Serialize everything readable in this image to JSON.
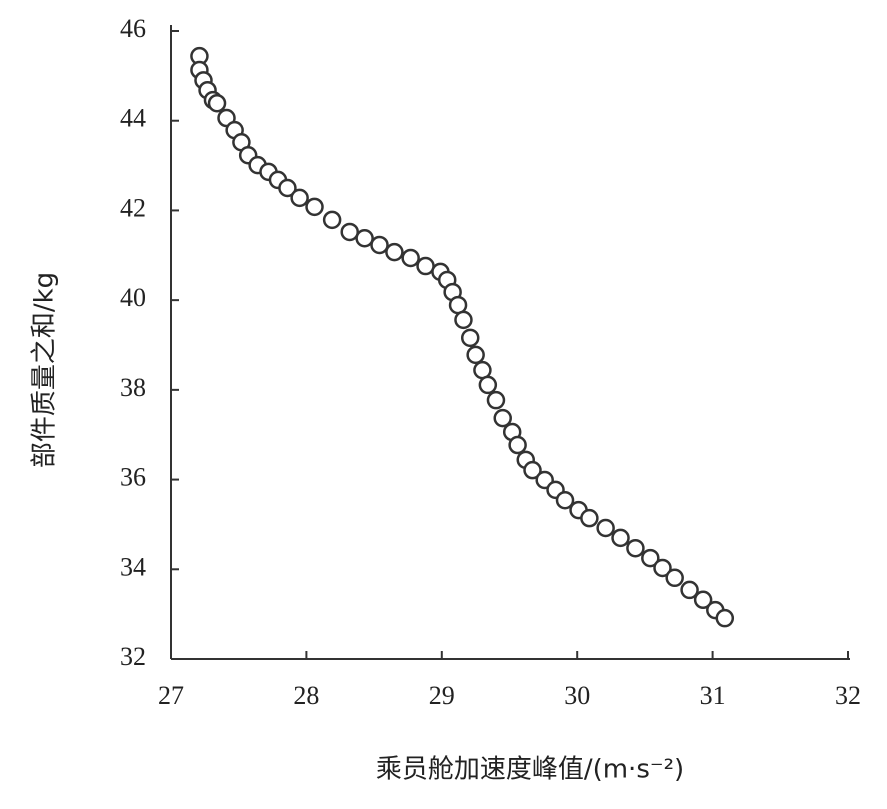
{
  "chart_data": {
    "type": "scatter",
    "x_label": "乘员舱加速度峰值/(m·s⁻²)",
    "y_label": "部件质量之和/kg",
    "x": [
      27.21,
      27.21,
      27.24,
      27.27,
      27.31,
      27.34,
      27.41,
      27.47,
      27.52,
      27.57,
      27.64,
      27.72,
      27.79,
      27.86,
      27.95,
      28.06,
      28.19,
      28.32,
      28.43,
      28.54,
      28.65,
      28.77,
      28.88,
      28.99,
      29.04,
      29.08,
      29.12,
      29.16,
      29.21,
      29.25,
      29.3,
      29.34,
      29.4,
      29.45,
      29.52,
      29.56,
      29.62,
      29.67,
      29.76,
      29.84,
      29.91,
      30.01,
      30.09,
      30.21,
      30.32,
      30.43,
      30.54,
      30.63,
      30.72,
      30.83,
      30.93,
      31.02,
      31.09
    ],
    "values": [
      45.44,
      45.13,
      44.9,
      44.68,
      44.46,
      44.39,
      44.06,
      43.79,
      43.52,
      43.23,
      43.01,
      42.86,
      42.68,
      42.5,
      42.28,
      42.08,
      41.79,
      41.52,
      41.38,
      41.23,
      41.07,
      40.94,
      40.76,
      40.63,
      40.45,
      40.18,
      39.89,
      39.56,
      39.16,
      38.78,
      38.44,
      38.11,
      37.77,
      37.37,
      37.06,
      36.77,
      36.44,
      36.21,
      35.99,
      35.77,
      35.54,
      35.32,
      35.14,
      34.92,
      34.7,
      34.47,
      34.25,
      34.03,
      33.81,
      33.54,
      33.32,
      33.09,
      32.91
    ],
    "color": "#333333",
    "xlim": [
      27,
      32
    ],
    "xticks": [
      27,
      28,
      29,
      30,
      31,
      32
    ],
    "ylim": [
      32,
      46
    ],
    "yticks": [
      32,
      34,
      36,
      38,
      40,
      42,
      44,
      46
    ]
  }
}
